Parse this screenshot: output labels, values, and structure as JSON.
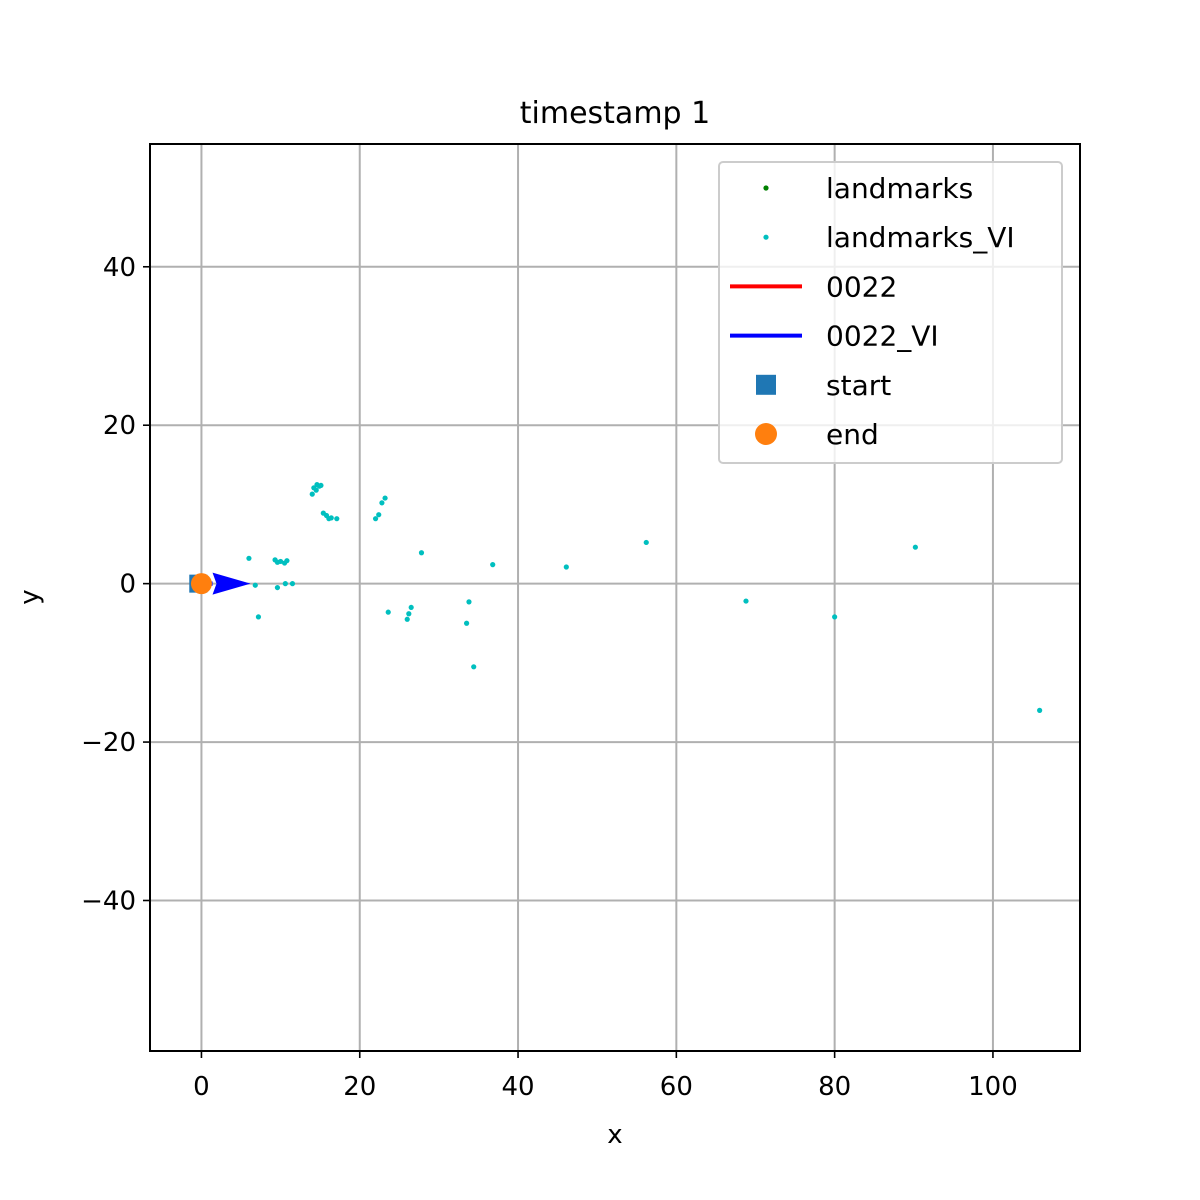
{
  "chart_data": {
    "type": "scatter",
    "title": "timestamp 1",
    "xlabel": "x",
    "ylabel": "y",
    "xlim": [
      -6.5,
      111
    ],
    "ylim": [
      -59,
      55.5
    ],
    "x_ticks": [
      0,
      20,
      40,
      60,
      80,
      100
    ],
    "x_tick_labels": [
      "0",
      "20",
      "40",
      "60",
      "80",
      "100"
    ],
    "y_ticks": [
      40,
      20,
      0,
      -20,
      -40
    ],
    "y_tick_labels": [
      "40",
      "20",
      "0",
      "−20",
      "−40"
    ],
    "grid": true,
    "legend_position": "upper right",
    "legend": [
      {
        "label": "landmarks",
        "marker": "point",
        "color": "#008000"
      },
      {
        "label": "landmarks_VI",
        "marker": "point",
        "color": "#00bfbf"
      },
      {
        "label": "0022",
        "marker": "line",
        "color": "#ff0000"
      },
      {
        "label": "0022_VI",
        "marker": "line",
        "color": "#0000ff"
      },
      {
        "label": "start",
        "marker": "square",
        "color": "#1f77b4"
      },
      {
        "label": "end",
        "marker": "circle",
        "color": "#ff7f0e"
      }
    ],
    "series": [
      {
        "name": "landmarks_VI",
        "color": "#00bfbf",
        "points": [
          [
            6.0,
            3.2
          ],
          [
            6.8,
            -0.2
          ],
          [
            7.2,
            -4.2
          ],
          [
            9.3,
            3.0
          ],
          [
            9.6,
            2.7
          ],
          [
            10.0,
            2.8
          ],
          [
            10.5,
            2.6
          ],
          [
            10.8,
            2.9
          ],
          [
            9.6,
            -0.5
          ],
          [
            10.6,
            0.0
          ],
          [
            11.5,
            0.0
          ],
          [
            14.0,
            11.3
          ],
          [
            14.2,
            12.1
          ],
          [
            14.6,
            12.5
          ],
          [
            14.9,
            12.3
          ],
          [
            15.1,
            12.4
          ],
          [
            14.5,
            11.8
          ],
          [
            15.4,
            8.9
          ],
          [
            15.8,
            8.6
          ],
          [
            16.1,
            8.2
          ],
          [
            16.4,
            8.3
          ],
          [
            17.1,
            8.2
          ],
          [
            22.0,
            8.2
          ],
          [
            22.4,
            8.7
          ],
          [
            22.8,
            10.2
          ],
          [
            23.2,
            10.8
          ],
          [
            23.6,
            -3.6
          ],
          [
            26.0,
            -4.5
          ],
          [
            26.2,
            -3.8
          ],
          [
            26.5,
            -3.0
          ],
          [
            27.8,
            3.9
          ],
          [
            33.5,
            -5.0
          ],
          [
            33.8,
            -2.3
          ],
          [
            34.4,
            -10.5
          ],
          [
            36.8,
            2.4
          ],
          [
            46.1,
            2.1
          ],
          [
            56.2,
            5.2
          ],
          [
            68.8,
            -2.2
          ],
          [
            80.0,
            -4.2
          ],
          [
            90.2,
            4.6
          ],
          [
            105.9,
            -16.0
          ]
        ]
      },
      {
        "name": "0022_VI",
        "color": "#0000ff",
        "points": [
          [
            0,
            0
          ],
          [
            0.2,
            0
          ]
        ],
        "arrow": {
          "from": [
            0,
            0
          ],
          "to": [
            6.2,
            0
          ]
        }
      },
      {
        "name": "start",
        "color": "#1f77b4",
        "points": [
          [
            -0.4,
            0
          ]
        ]
      },
      {
        "name": "end",
        "color": "#ff7f0e",
        "points": [
          [
            0,
            0
          ]
        ]
      }
    ]
  }
}
